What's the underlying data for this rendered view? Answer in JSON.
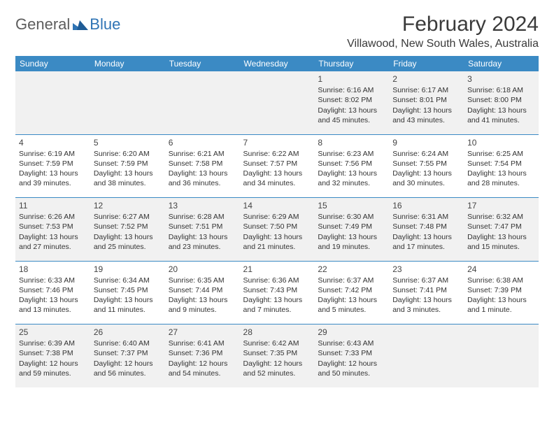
{
  "logo": {
    "text1": "General",
    "text2": "Blue"
  },
  "title": "February 2024",
  "location": "Villawood, New South Wales, Australia",
  "colors": {
    "header_bg": "#3b8ac4",
    "header_fg": "#ffffff",
    "shade_bg": "#f1f1f1",
    "rule": "#3b8ac4",
    "logo_gray": "#5d5d5d",
    "logo_blue": "#2f74b5"
  },
  "day_headers": [
    "Sunday",
    "Monday",
    "Tuesday",
    "Wednesday",
    "Thursday",
    "Friday",
    "Saturday"
  ],
  "weeks": [
    [
      null,
      null,
      null,
      null,
      {
        "n": "1",
        "sr": "Sunrise: 6:16 AM",
        "ss": "Sunset: 8:02 PM",
        "dl1": "Daylight: 13 hours",
        "dl2": "and 45 minutes."
      },
      {
        "n": "2",
        "sr": "Sunrise: 6:17 AM",
        "ss": "Sunset: 8:01 PM",
        "dl1": "Daylight: 13 hours",
        "dl2": "and 43 minutes."
      },
      {
        "n": "3",
        "sr": "Sunrise: 6:18 AM",
        "ss": "Sunset: 8:00 PM",
        "dl1": "Daylight: 13 hours",
        "dl2": "and 41 minutes."
      }
    ],
    [
      {
        "n": "4",
        "sr": "Sunrise: 6:19 AM",
        "ss": "Sunset: 7:59 PM",
        "dl1": "Daylight: 13 hours",
        "dl2": "and 39 minutes."
      },
      {
        "n": "5",
        "sr": "Sunrise: 6:20 AM",
        "ss": "Sunset: 7:59 PM",
        "dl1": "Daylight: 13 hours",
        "dl2": "and 38 minutes."
      },
      {
        "n": "6",
        "sr": "Sunrise: 6:21 AM",
        "ss": "Sunset: 7:58 PM",
        "dl1": "Daylight: 13 hours",
        "dl2": "and 36 minutes."
      },
      {
        "n": "7",
        "sr": "Sunrise: 6:22 AM",
        "ss": "Sunset: 7:57 PM",
        "dl1": "Daylight: 13 hours",
        "dl2": "and 34 minutes."
      },
      {
        "n": "8",
        "sr": "Sunrise: 6:23 AM",
        "ss": "Sunset: 7:56 PM",
        "dl1": "Daylight: 13 hours",
        "dl2": "and 32 minutes."
      },
      {
        "n": "9",
        "sr": "Sunrise: 6:24 AM",
        "ss": "Sunset: 7:55 PM",
        "dl1": "Daylight: 13 hours",
        "dl2": "and 30 minutes."
      },
      {
        "n": "10",
        "sr": "Sunrise: 6:25 AM",
        "ss": "Sunset: 7:54 PM",
        "dl1": "Daylight: 13 hours",
        "dl2": "and 28 minutes."
      }
    ],
    [
      {
        "n": "11",
        "sr": "Sunrise: 6:26 AM",
        "ss": "Sunset: 7:53 PM",
        "dl1": "Daylight: 13 hours",
        "dl2": "and 27 minutes."
      },
      {
        "n": "12",
        "sr": "Sunrise: 6:27 AM",
        "ss": "Sunset: 7:52 PM",
        "dl1": "Daylight: 13 hours",
        "dl2": "and 25 minutes."
      },
      {
        "n": "13",
        "sr": "Sunrise: 6:28 AM",
        "ss": "Sunset: 7:51 PM",
        "dl1": "Daylight: 13 hours",
        "dl2": "and 23 minutes."
      },
      {
        "n": "14",
        "sr": "Sunrise: 6:29 AM",
        "ss": "Sunset: 7:50 PM",
        "dl1": "Daylight: 13 hours",
        "dl2": "and 21 minutes."
      },
      {
        "n": "15",
        "sr": "Sunrise: 6:30 AM",
        "ss": "Sunset: 7:49 PM",
        "dl1": "Daylight: 13 hours",
        "dl2": "and 19 minutes."
      },
      {
        "n": "16",
        "sr": "Sunrise: 6:31 AM",
        "ss": "Sunset: 7:48 PM",
        "dl1": "Daylight: 13 hours",
        "dl2": "and 17 minutes."
      },
      {
        "n": "17",
        "sr": "Sunrise: 6:32 AM",
        "ss": "Sunset: 7:47 PM",
        "dl1": "Daylight: 13 hours",
        "dl2": "and 15 minutes."
      }
    ],
    [
      {
        "n": "18",
        "sr": "Sunrise: 6:33 AM",
        "ss": "Sunset: 7:46 PM",
        "dl1": "Daylight: 13 hours",
        "dl2": "and 13 minutes."
      },
      {
        "n": "19",
        "sr": "Sunrise: 6:34 AM",
        "ss": "Sunset: 7:45 PM",
        "dl1": "Daylight: 13 hours",
        "dl2": "and 11 minutes."
      },
      {
        "n": "20",
        "sr": "Sunrise: 6:35 AM",
        "ss": "Sunset: 7:44 PM",
        "dl1": "Daylight: 13 hours",
        "dl2": "and 9 minutes."
      },
      {
        "n": "21",
        "sr": "Sunrise: 6:36 AM",
        "ss": "Sunset: 7:43 PM",
        "dl1": "Daylight: 13 hours",
        "dl2": "and 7 minutes."
      },
      {
        "n": "22",
        "sr": "Sunrise: 6:37 AM",
        "ss": "Sunset: 7:42 PM",
        "dl1": "Daylight: 13 hours",
        "dl2": "and 5 minutes."
      },
      {
        "n": "23",
        "sr": "Sunrise: 6:37 AM",
        "ss": "Sunset: 7:41 PM",
        "dl1": "Daylight: 13 hours",
        "dl2": "and 3 minutes."
      },
      {
        "n": "24",
        "sr": "Sunrise: 6:38 AM",
        "ss": "Sunset: 7:39 PM",
        "dl1": "Daylight: 13 hours",
        "dl2": "and 1 minute."
      }
    ],
    [
      {
        "n": "25",
        "sr": "Sunrise: 6:39 AM",
        "ss": "Sunset: 7:38 PM",
        "dl1": "Daylight: 12 hours",
        "dl2": "and 59 minutes."
      },
      {
        "n": "26",
        "sr": "Sunrise: 6:40 AM",
        "ss": "Sunset: 7:37 PM",
        "dl1": "Daylight: 12 hours",
        "dl2": "and 56 minutes."
      },
      {
        "n": "27",
        "sr": "Sunrise: 6:41 AM",
        "ss": "Sunset: 7:36 PM",
        "dl1": "Daylight: 12 hours",
        "dl2": "and 54 minutes."
      },
      {
        "n": "28",
        "sr": "Sunrise: 6:42 AM",
        "ss": "Sunset: 7:35 PM",
        "dl1": "Daylight: 12 hours",
        "dl2": "and 52 minutes."
      },
      {
        "n": "29",
        "sr": "Sunrise: 6:43 AM",
        "ss": "Sunset: 7:33 PM",
        "dl1": "Daylight: 12 hours",
        "dl2": "and 50 minutes."
      },
      null,
      null
    ]
  ]
}
